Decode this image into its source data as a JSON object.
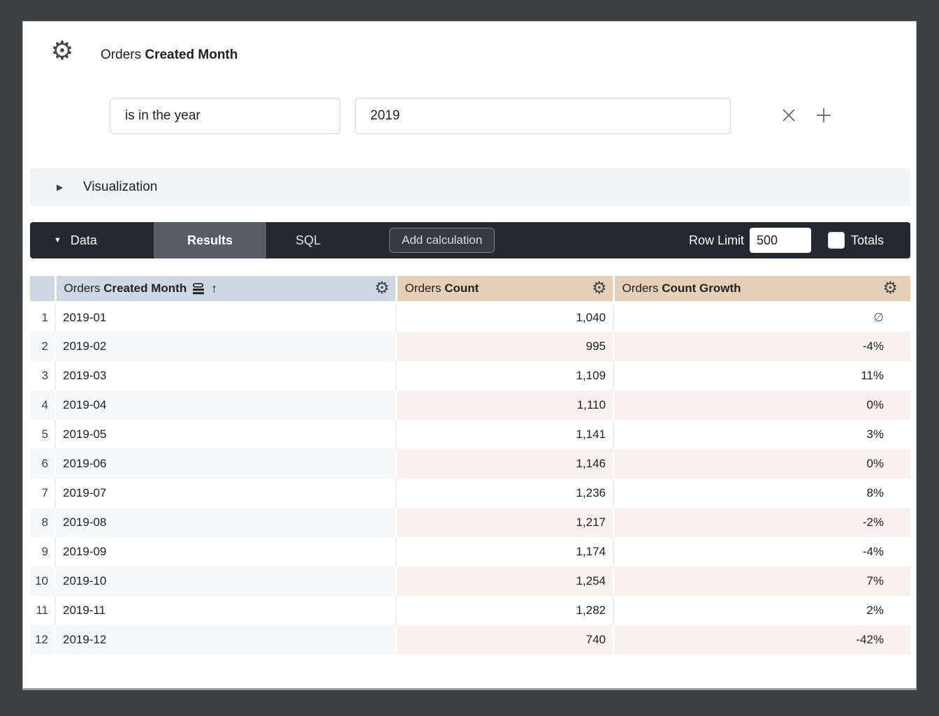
{
  "header": {
    "title_prefix": "Orders",
    "title_bold": "Created Month"
  },
  "filters": {
    "condition": "is in the year",
    "value": "2019"
  },
  "visualization": {
    "label": "Visualization",
    "caret": "▶"
  },
  "toolbar": {
    "data_label": "Data",
    "data_caret": "▼",
    "results_tab": "Results",
    "sql_tab": "SQL",
    "add_calculation_label": "Add calculation",
    "row_limit_label": "Row Limit",
    "row_limit_value": "500",
    "totals_label": "Totals",
    "totals_checked": false
  },
  "icons": {
    "gear": "⚙",
    "sort_arrow": "↑",
    "null_symbol": "∅"
  },
  "table": {
    "columns": [
      {
        "prefix": "Orders",
        "bold": "Created Month",
        "type": "dimension",
        "sorted": "asc"
      },
      {
        "prefix": "Orders",
        "bold": "Count",
        "type": "measure"
      },
      {
        "prefix": "Orders",
        "bold": "Count Growth",
        "type": "measure"
      }
    ],
    "rows": [
      {
        "index": "1",
        "month": "2019-01",
        "count": "1,040",
        "growth": "∅"
      },
      {
        "index": "2",
        "month": "2019-02",
        "count": "995",
        "growth": "-4%"
      },
      {
        "index": "3",
        "month": "2019-03",
        "count": "1,109",
        "growth": "11%"
      },
      {
        "index": "4",
        "month": "2019-04",
        "count": "1,110",
        "growth": "0%"
      },
      {
        "index": "5",
        "month": "2019-05",
        "count": "1,141",
        "growth": "3%"
      },
      {
        "index": "6",
        "month": "2019-06",
        "count": "1,146",
        "growth": "0%"
      },
      {
        "index": "7",
        "month": "2019-07",
        "count": "1,236",
        "growth": "8%"
      },
      {
        "index": "8",
        "month": "2019-08",
        "count": "1,217",
        "growth": "-2%"
      },
      {
        "index": "9",
        "month": "2019-09",
        "count": "1,174",
        "growth": "-4%"
      },
      {
        "index": "10",
        "month": "2019-10",
        "count": "1,254",
        "growth": "7%"
      },
      {
        "index": "11",
        "month": "2019-11",
        "count": "1,282",
        "growth": "2%"
      },
      {
        "index": "12",
        "month": "2019-12",
        "count": "740",
        "growth": "-42%"
      }
    ]
  },
  "colors": {
    "outer_background": "#3c4043",
    "card_background": "#ffffff",
    "toolbar_background": "#24292e",
    "active_tab_background": "#565e64",
    "dimension_header": "#cdd8e3",
    "measure_header": "#e6cfb8",
    "dimension_stripe": "#f7f8fa",
    "measure_stripe": "#f8f2ec"
  }
}
